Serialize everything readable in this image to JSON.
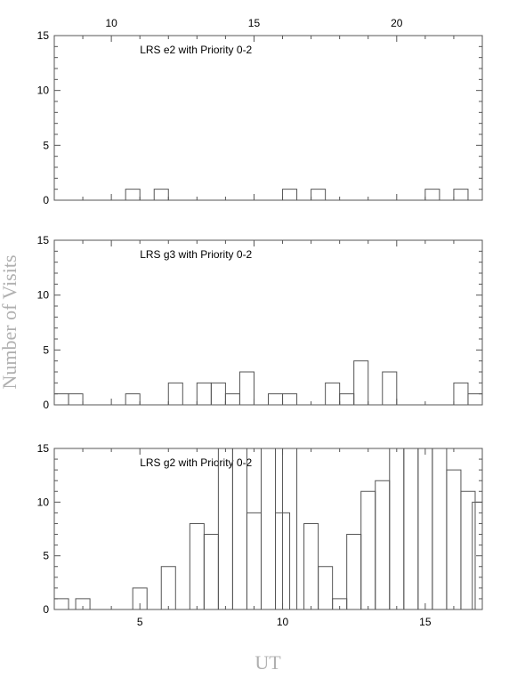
{
  "figure": {
    "ylabel": "Number of Visits",
    "xlabel": "UT"
  },
  "chart_data": [
    {
      "type": "bar",
      "title": "LRS e2 with Priority 0-2",
      "xlim": [
        8,
        23
      ],
      "ylim": [
        0,
        15
      ],
      "xticks": [
        10,
        15,
        20
      ],
      "yticks": [
        0,
        5,
        10,
        15
      ],
      "bin_width": 0.5,
      "bins": [
        {
          "x": 10.75,
          "value": 1
        },
        {
          "x": 11.75,
          "value": 1
        },
        {
          "x": 16.25,
          "value": 1
        },
        {
          "x": 17.25,
          "value": 1
        },
        {
          "x": 21.25,
          "value": 1
        },
        {
          "x": 22.25,
          "value": 1
        }
      ]
    },
    {
      "type": "bar",
      "title": "LRS g3 with Priority 0-2",
      "xlim": [
        8,
        23
      ],
      "ylim": [
        0,
        15
      ],
      "yticks": [
        0,
        5,
        10,
        15
      ],
      "bin_width": 0.5,
      "bins": [
        {
          "x": 8.25,
          "value": 1
        },
        {
          "x": 8.75,
          "value": 1
        },
        {
          "x": 10.75,
          "value": 1
        },
        {
          "x": 12.25,
          "value": 2
        },
        {
          "x": 13.25,
          "value": 2
        },
        {
          "x": 13.75,
          "value": 2
        },
        {
          "x": 14.25,
          "value": 1
        },
        {
          "x": 14.75,
          "value": 3
        },
        {
          "x": 15.75,
          "value": 1
        },
        {
          "x": 16.25,
          "value": 1
        },
        {
          "x": 17.75,
          "value": 2
        },
        {
          "x": 18.25,
          "value": 1
        },
        {
          "x": 18.75,
          "value": 4
        },
        {
          "x": 19.75,
          "value": 3
        },
        {
          "x": 22.25,
          "value": 2
        },
        {
          "x": 22.75,
          "value": 1
        }
      ]
    },
    {
      "type": "bar",
      "title": "LRS g2 with Priority 0-2",
      "xlim": [
        2,
        17
      ],
      "ylim": [
        0,
        15
      ],
      "xticks": [
        5,
        10,
        15
      ],
      "yticks": [
        0,
        5,
        10,
        15
      ],
      "bin_width": 0.5,
      "bins": [
        {
          "x": 2.25,
          "value": 1
        },
        {
          "x": 3.0,
          "value": 1
        },
        {
          "x": 5.0,
          "value": 2
        },
        {
          "x": 6.0,
          "value": 4
        },
        {
          "x": 7.0,
          "value": 8
        },
        {
          "x": 7.5,
          "value": 7
        },
        {
          "x": 8.0,
          "value": 15
        },
        {
          "x": 8.5,
          "value": 15
        },
        {
          "x": 9.0,
          "value": 9
        },
        {
          "x": 9.5,
          "value": 15
        },
        {
          "x": 10.0,
          "value": 9
        },
        {
          "x": 10.25,
          "value": 15
        },
        {
          "x": 11.0,
          "value": 8
        },
        {
          "x": 11.5,
          "value": 4
        },
        {
          "x": 12.0,
          "value": 1
        },
        {
          "x": 12.5,
          "value": 7
        },
        {
          "x": 13.0,
          "value": 11
        },
        {
          "x": 13.5,
          "value": 12
        },
        {
          "x": 14.0,
          "value": 15
        },
        {
          "x": 14.5,
          "value": 15
        },
        {
          "x": 15.0,
          "value": 15
        },
        {
          "x": 15.5,
          "value": 15
        },
        {
          "x": 16.0,
          "value": 13
        },
        {
          "x": 16.5,
          "value": 11
        },
        {
          "x": 16.9,
          "value": 10
        }
      ]
    }
  ]
}
